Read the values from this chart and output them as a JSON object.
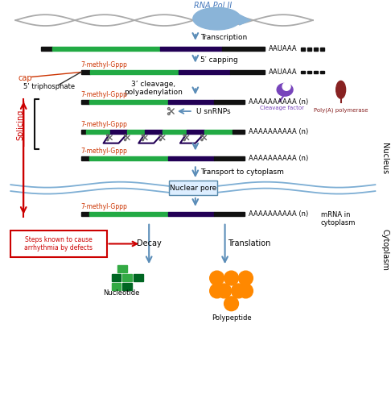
{
  "bg_color": "#ffffff",
  "fig_width": 4.86,
  "fig_height": 5.0,
  "dpi": 100,
  "rna_pol_label": "RNA Pol II",
  "transcription_label": "Transcription",
  "capping_label": "5′ capping",
  "cleavage_label": "3’ cleavage,\npolyadenylation",
  "cap_label": "cap",
  "triphosphate_label": "5’ triphosphate",
  "methyl_label": "7-methyl-Gppp",
  "cleavage_factor_label": "Cleavage factor",
  "polya_polymerase_label": "Poly(A) polymerase",
  "splicing_label": "Splicing",
  "usnrnp_label": "U snRNPs",
  "transport_label": "Transport to cytoplasm",
  "nuclear_pore_label": "Nuclear pore",
  "mrna_label": "mRNA in\ncytoplasm",
  "steps_label": "Steps known to cause\narrhythmia by defects",
  "nucleus_label": "Nucleus",
  "cytoplasm_label": "Cytoplasm",
  "decay_label": "Decay",
  "translation_label": "Translation",
  "nucleotide_label": "Nucleotide",
  "polypeptide_label": "Polypeptide",
  "aauaaa_label": "AAUAAA",
  "polyA_label": "AAAAAAAAAA (n)",
  "arrow_color": "#5b8db8",
  "red_color": "#cc0000",
  "mrna_green": "#22aa44",
  "mrna_purple": "#220055",
  "mrna_black": "#111111",
  "orange_color": "#ff8800",
  "nucleus_border_color": "#7daed4",
  "purple_protein": "#6633aa",
  "dark_red": "#882222"
}
